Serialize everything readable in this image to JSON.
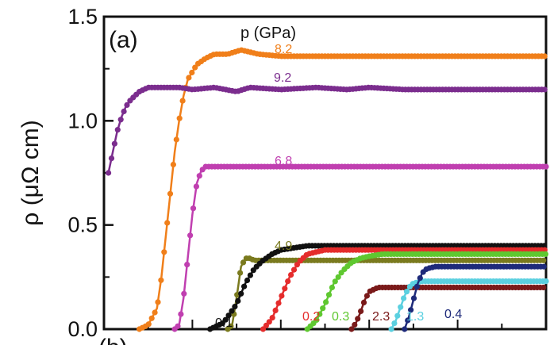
{
  "chart_data": {
    "type": "scatter",
    "panel_label": "(a)",
    "bottom_panel_label": "(b)",
    "ylabel": "ρ (μΩ cm)",
    "legend_title": "p (GPa)",
    "ylim": [
      0,
      1.5
    ],
    "yticks": [
      "0.0",
      "0.5",
      "1.0",
      "1.5"
    ],
    "grid": false,
    "series": [
      {
        "name": "8.2",
        "color": "#f07f1a",
        "x": [
          8,
          10,
          12,
          13,
          14,
          15,
          16,
          17,
          18,
          19,
          21,
          23,
          25,
          28,
          31,
          35,
          40,
          48,
          60,
          72,
          85,
          100
        ],
        "y": [
          0.0,
          0.02,
          0.1,
          0.25,
          0.45,
          0.65,
          0.85,
          1.0,
          1.12,
          1.2,
          1.27,
          1.3,
          1.32,
          1.32,
          1.34,
          1.32,
          1.31,
          1.31,
          1.31,
          1.31,
          1.31,
          1.31
        ]
      },
      {
        "name": "9.2",
        "color": "#7b2d8e",
        "x": [
          1,
          2,
          3,
          4,
          5,
          6,
          8,
          10,
          13,
          17,
          20,
          25,
          30,
          33,
          40,
          48,
          55,
          60,
          68,
          80,
          90,
          100
        ],
        "y": [
          0.75,
          0.85,
          0.95,
          1.02,
          1.07,
          1.1,
          1.14,
          1.16,
          1.16,
          1.16,
          1.15,
          1.16,
          1.14,
          1.16,
          1.15,
          1.16,
          1.15,
          1.16,
          1.15,
          1.15,
          1.15,
          1.15
        ]
      },
      {
        "name": "6.8",
        "color": "#c03fb0",
        "x": [
          16,
          17,
          18,
          19,
          20,
          21,
          22,
          23,
          25,
          30,
          35,
          40,
          50,
          60,
          70,
          80,
          90,
          100
        ],
        "y": [
          0.0,
          0.02,
          0.15,
          0.35,
          0.55,
          0.7,
          0.76,
          0.78,
          0.78,
          0.78,
          0.78,
          0.78,
          0.78,
          0.78,
          0.78,
          0.78,
          0.78,
          0.78
        ]
      },
      {
        "name": "4.9",
        "color": "#7a7a1e",
        "x": [
          28,
          29,
          30,
          31,
          32,
          33,
          34,
          36,
          40,
          45,
          50,
          60,
          70,
          80,
          90,
          100
        ],
        "y": [
          0.0,
          0.02,
          0.15,
          0.3,
          0.34,
          0.34,
          0.33,
          0.33,
          0.33,
          0.33,
          0.33,
          0.33,
          0.33,
          0.33,
          0.33,
          0.33
        ]
      },
      {
        "name": "0.1",
        "color": "#111111",
        "x": [
          24,
          27,
          30,
          32,
          34,
          36,
          38,
          40,
          43,
          46,
          50,
          55,
          60,
          70,
          80,
          90,
          100
        ],
        "y": [
          0.0,
          0.03,
          0.12,
          0.22,
          0.29,
          0.33,
          0.36,
          0.38,
          0.39,
          0.4,
          0.4,
          0.4,
          0.4,
          0.4,
          0.4,
          0.4,
          0.4
        ]
      },
      {
        "name": "0.2",
        "color": "#e52c2c",
        "x": [
          36,
          38,
          40,
          42,
          44,
          46,
          48,
          50,
          53,
          56,
          60,
          70,
          80,
          90,
          100
        ],
        "y": [
          0.0,
          0.05,
          0.15,
          0.25,
          0.32,
          0.36,
          0.37,
          0.38,
          0.38,
          0.38,
          0.38,
          0.38,
          0.38,
          0.38,
          0.38
        ]
      },
      {
        "name": "0.3",
        "color": "#5fc830",
        "x": [
          46,
          48,
          50,
          52,
          54,
          56,
          58,
          60,
          63,
          66,
          70,
          80,
          90,
          100
        ],
        "y": [
          0.0,
          0.04,
          0.12,
          0.22,
          0.28,
          0.32,
          0.34,
          0.35,
          0.36,
          0.36,
          0.36,
          0.36,
          0.36,
          0.36
        ]
      },
      {
        "name": "2.3",
        "color": "#7a1a1a",
        "x": [
          56,
          57,
          58,
          59,
          60,
          62,
          65,
          70,
          80,
          90,
          100
        ],
        "y": [
          0.0,
          0.03,
          0.08,
          0.14,
          0.18,
          0.2,
          0.2,
          0.2,
          0.2,
          0.2,
          0.2
        ]
      },
      {
        "name": "1.3",
        "color": "#5bd0e0",
        "x": [
          65,
          66,
          67,
          68,
          69,
          70,
          72,
          75,
          80,
          90,
          100
        ],
        "y": [
          0.0,
          0.04,
          0.1,
          0.16,
          0.2,
          0.22,
          0.23,
          0.23,
          0.23,
          0.23,
          0.23
        ]
      },
      {
        "name": "0.4",
        "color": "#1e2a7a",
        "x": [
          68,
          69,
          70,
          71,
          72,
          73,
          75,
          78,
          82,
          90,
          100
        ],
        "y": [
          0.0,
          0.06,
          0.14,
          0.22,
          0.27,
          0.29,
          0.3,
          0.3,
          0.3,
          0.3,
          0.3
        ]
      }
    ]
  }
}
